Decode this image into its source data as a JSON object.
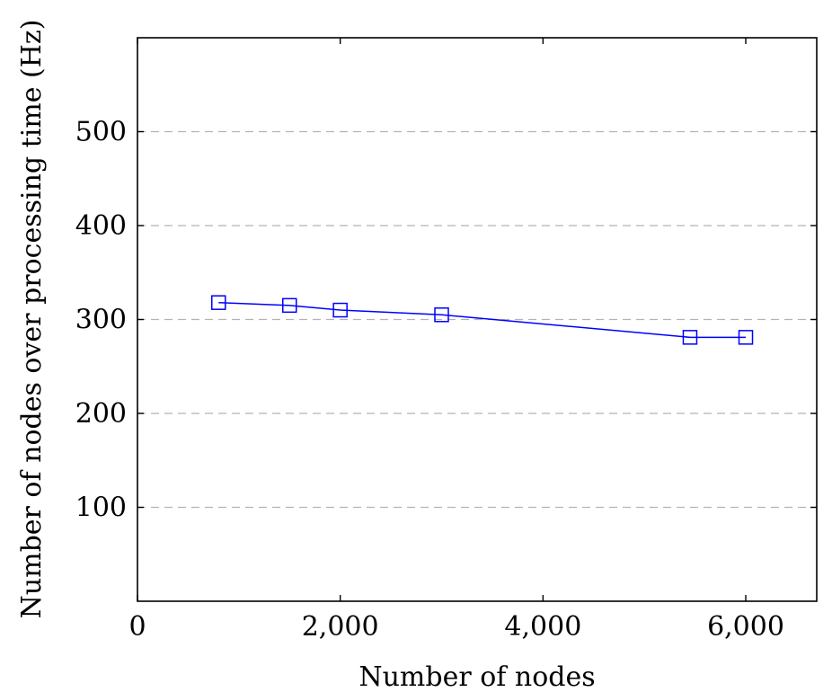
{
  "chart_data": {
    "type": "line",
    "title": "",
    "xlabel": "Number of nodes",
    "ylabel": "Number of nodes over processing time (Hz)",
    "xlim": [
      0,
      6700
    ],
    "ylim": [
      0,
      600
    ],
    "xticks": [
      0,
      2000,
      4000,
      6000
    ],
    "xtick_labels": [
      "0",
      "2,000",
      "4,000",
      "6,000"
    ],
    "yticks": [
      100,
      200,
      300,
      400,
      500
    ],
    "ytick_labels": [
      "100",
      "200",
      "300",
      "400",
      "500"
    ],
    "grid": "horizontal dashed",
    "legend": "none",
    "series": [
      {
        "color": "#0000ff",
        "marker": "square",
        "x": [
          800,
          1500,
          2000,
          3000,
          5450,
          6000
        ],
        "y": [
          318,
          315,
          310,
          305,
          281,
          281
        ]
      }
    ]
  }
}
